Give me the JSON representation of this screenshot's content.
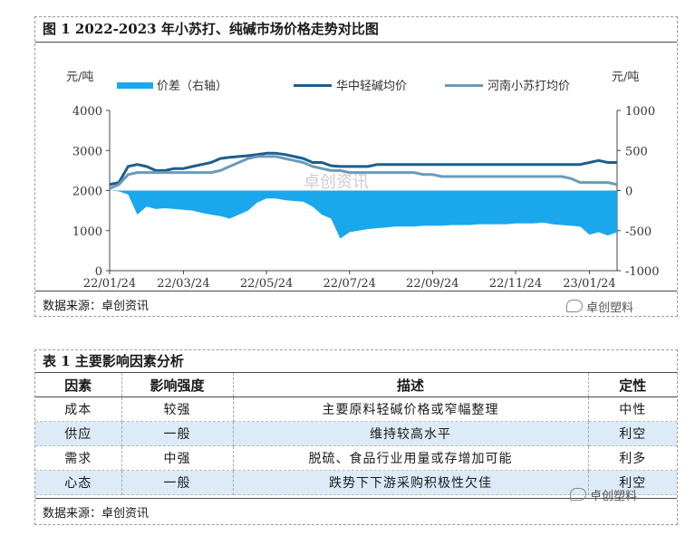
{
  "figure": {
    "title": "图 1  2022-2023 年小苏打、纯碱市场价格走势对比图",
    "source": "数据来源：卓创资讯",
    "watermark_center": "卓创资讯",
    "watermark_corner": "卓创塑料"
  },
  "chart_data": {
    "type": "line",
    "left_unit": "元/吨",
    "right_unit": "元/吨",
    "y_left_ticks": [
      "4000",
      "3000",
      "2000",
      "1000",
      "0"
    ],
    "y_right_ticks": [
      "1000",
      "500",
      "0",
      "-500",
      "-1000"
    ],
    "ylim_left": [
      0,
      4000
    ],
    "ylim_right": [
      -1000,
      1000
    ],
    "x_ticks": [
      "22/01/24",
      "22/03/24",
      "22/05/24",
      "22/07/24",
      "22/09/24",
      "22/11/24",
      "23/01/24"
    ],
    "x_tick_index": [
      0,
      8,
      17,
      26,
      35,
      44,
      52
    ],
    "legend_position": "top",
    "grid": false,
    "series": [
      {
        "name": "价差（右轴）",
        "axis": "right",
        "style": "area",
        "color": "#1aa7ec",
        "values": [
          0,
          -10,
          -50,
          -300,
          -200,
          -230,
          -220,
          -230,
          -240,
          -250,
          -280,
          -300,
          -320,
          -350,
          -300,
          -250,
          -150,
          -100,
          -100,
          -120,
          -130,
          -140,
          -200,
          -300,
          -350,
          -600,
          -520,
          -500,
          -480,
          -470,
          -460,
          -450,
          -450,
          -450,
          -440,
          -440,
          -440,
          -430,
          -430,
          -430,
          -420,
          -420,
          -420,
          -420,
          -410,
          -410,
          -410,
          -400,
          -420,
          -430,
          -440,
          -450,
          -550,
          -520,
          -560,
          -520
        ]
      },
      {
        "name": "华中轻碱均价",
        "axis": "left",
        "style": "line",
        "color": "#1c5e8e",
        "values": [
          2150,
          2200,
          2600,
          2650,
          2600,
          2500,
          2500,
          2550,
          2550,
          2600,
          2650,
          2700,
          2800,
          2830,
          2850,
          2870,
          2900,
          2930,
          2930,
          2900,
          2850,
          2800,
          2700,
          2700,
          2620,
          2600,
          2600,
          2600,
          2600,
          2650,
          2650,
          2650,
          2650,
          2650,
          2650,
          2650,
          2650,
          2650,
          2650,
          2650,
          2650,
          2650,
          2650,
          2650,
          2650,
          2650,
          2650,
          2650,
          2650,
          2650,
          2650,
          2650,
          2700,
          2750,
          2700,
          2700
        ]
      },
      {
        "name": "河南小苏打均价",
        "axis": "left",
        "style": "line",
        "color": "#6c9ab8",
        "values": [
          2050,
          2150,
          2400,
          2450,
          2450,
          2450,
          2450,
          2450,
          2450,
          2450,
          2450,
          2450,
          2500,
          2600,
          2700,
          2800,
          2850,
          2850,
          2850,
          2800,
          2750,
          2700,
          2600,
          2550,
          2500,
          2500,
          2450,
          2450,
          2450,
          2450,
          2450,
          2450,
          2450,
          2450,
          2400,
          2400,
          2350,
          2350,
          2350,
          2350,
          2350,
          2350,
          2350,
          2350,
          2350,
          2350,
          2350,
          2350,
          2350,
          2350,
          2300,
          2200,
          2200,
          2200,
          2200,
          2150
        ]
      }
    ]
  },
  "table": {
    "title": "表 1  主要影响因素分析",
    "headers": [
      "因素",
      "影响强度",
      "描述",
      "定性"
    ],
    "rows": [
      [
        "成本",
        "较强",
        "主要原料轻碱价格或窄幅整理",
        "中性"
      ],
      [
        "供应",
        "一般",
        "维持较高水平",
        "利空"
      ],
      [
        "需求",
        "中强",
        "脱硫、食品行业用量或存增加可能",
        "利多"
      ],
      [
        "心态",
        "一般",
        "跌势下下游采购积极性欠佳",
        "利空"
      ]
    ],
    "source": "数据来源：卓创资讯",
    "watermark_corner": "卓创塑料"
  }
}
